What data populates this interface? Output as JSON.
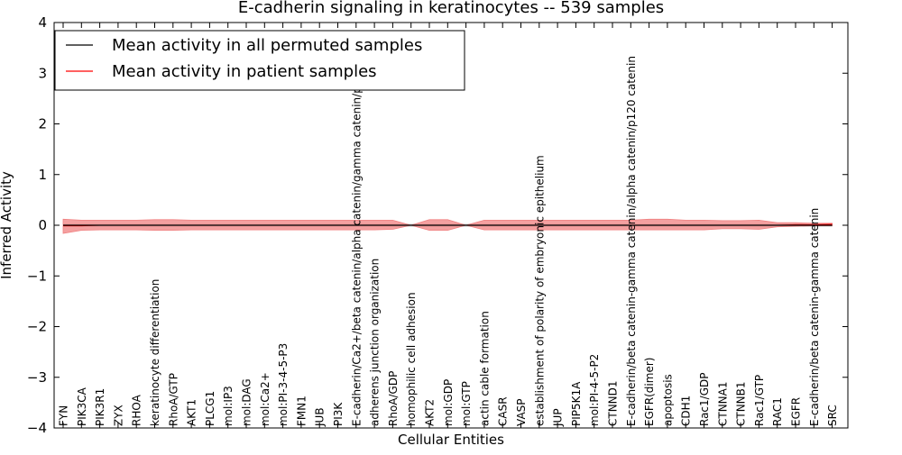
{
  "chart_data": {
    "type": "line",
    "title": "E-cadherin signaling in keratinocytes -- 539 samples",
    "xlabel": "Cellular Entities",
    "ylabel": "Inferred Activity",
    "ylim": [
      -4,
      4
    ],
    "yticks": [
      "4",
      "3",
      "2",
      "1",
      "0",
      "−1",
      "−2",
      "−3",
      "−4"
    ],
    "grid": false,
    "legend_position": "top-left",
    "categories": [
      "FYN",
      "PIK3CA",
      "PIK3R1",
      "ZYX",
      "RHOA",
      "keratinocyte differentiation",
      "RhoA/GTP",
      "AKT1",
      "PLCG1",
      "mol:IP3",
      "mol:DAG",
      "mol:Ca2+",
      "mol:PI-3-4-5-P3",
      "FMN1",
      "JUB",
      "PI3K",
      "E-cadherin/Ca2+/beta catenin/alpha catenin/gamma catenin/p120",
      "adherens junction organization",
      "RhoA/GDP",
      "homophilic cell adhesion",
      "AKT2",
      "mol:GDP",
      "mol:GTP",
      "actin cable formation",
      "CASR",
      "VASP",
      "establishment of polarity of embryonic epithelium",
      "JUP",
      "PIP5K1A",
      "mol:PI-4-5-P2",
      "CTNND1",
      "E-cadherin/beta catenin-gamma catenin/alpha catenin/p120 catenin",
      "EGFR(dimer)",
      "apoptosis",
      "CDH1",
      "Rac1/GDP",
      "CTNNA1",
      "CTNNB1",
      "Rac1/GTP",
      "RAC1",
      "EGFR",
      "E-cadherin/beta catenin-gamma catenin",
      "SRC"
    ],
    "series": [
      {
        "name": "Mean activity in all permuted samples",
        "color": "#000000",
        "values": [
          0,
          0,
          0,
          0,
          0,
          0,
          0,
          0,
          0,
          0,
          0,
          0,
          0,
          0,
          0,
          0,
          0,
          0,
          0,
          0,
          0,
          0,
          0,
          0,
          0,
          0,
          0,
          0,
          0,
          0,
          0,
          0,
          0,
          0,
          0,
          0,
          0,
          0,
          0,
          0,
          0,
          0,
          0
        ]
      },
      {
        "name": "Mean activity in patient samples",
        "color": "#ff0000",
        "values": [
          -0.01,
          -0.01,
          0,
          0,
          0,
          0,
          0,
          0,
          0,
          0,
          0,
          0,
          0,
          0,
          0,
          0,
          0,
          0,
          0,
          0,
          0,
          0,
          0,
          0,
          0,
          0,
          0,
          0,
          0,
          0,
          0,
          0,
          0,
          0,
          0,
          0,
          0,
          0,
          0,
          0,
          0.01,
          0.01,
          0.02
        ]
      }
    ],
    "band": {
      "color": "#f08080",
      "upper": [
        0.12,
        0.1,
        0.1,
        0.1,
        0.1,
        0.11,
        0.11,
        0.1,
        0.1,
        0.1,
        0.1,
        0.1,
        0.1,
        0.1,
        0.1,
        0.1,
        0.1,
        0.1,
        0.1,
        0.0,
        0.11,
        0.11,
        0.0,
        0.1,
        0.1,
        0.1,
        0.1,
        0.1,
        0.1,
        0.1,
        0.1,
        0.1,
        0.12,
        0.12,
        0.1,
        0.1,
        0.09,
        0.09,
        0.1,
        0.05,
        0.05,
        0.04,
        0.04
      ],
      "lower": [
        -0.16,
        -0.1,
        -0.09,
        -0.09,
        -0.09,
        -0.1,
        -0.1,
        -0.09,
        -0.09,
        -0.09,
        -0.09,
        -0.09,
        -0.09,
        -0.09,
        -0.09,
        -0.09,
        -0.09,
        -0.09,
        -0.08,
        0.0,
        -0.1,
        -0.1,
        0.0,
        -0.09,
        -0.09,
        -0.09,
        -0.09,
        -0.09,
        -0.09,
        -0.09,
        -0.09,
        -0.09,
        -0.09,
        -0.09,
        -0.09,
        -0.09,
        -0.07,
        -0.07,
        -0.08,
        -0.03,
        -0.02,
        -0.01,
        -0.01
      ]
    },
    "permuted_band": {
      "color": "#c8c8c8",
      "upper": [
        0.03,
        0.03,
        0.03,
        0.03,
        0.03,
        0.03,
        0.03,
        0.03,
        0.03,
        0.03,
        0.03,
        0.03,
        0.03,
        0.03,
        0.03,
        0.03,
        0.03,
        0.03,
        0.03,
        0.03,
        0.03,
        0.03,
        0.03,
        0.03,
        0.03,
        0.03,
        0.03,
        0.03,
        0.03,
        0.03,
        0.03,
        0.03,
        0.03,
        0.03,
        0.03,
        0.03,
        0.03,
        0.03,
        0.03,
        0.03,
        0.03,
        0.03,
        0.03
      ],
      "lower": [
        -0.03,
        -0.03,
        -0.03,
        -0.03,
        -0.03,
        -0.03,
        -0.03,
        -0.03,
        -0.03,
        -0.03,
        -0.03,
        -0.03,
        -0.03,
        -0.03,
        -0.03,
        -0.03,
        -0.03,
        -0.03,
        -0.03,
        -0.03,
        -0.03,
        -0.03,
        -0.03,
        -0.03,
        -0.03,
        -0.03,
        -0.03,
        -0.03,
        -0.03,
        -0.03,
        -0.03,
        -0.03,
        -0.03,
        -0.03,
        -0.03,
        -0.03,
        -0.03,
        -0.03,
        -0.03,
        -0.03,
        -0.03,
        -0.03,
        -0.03
      ]
    }
  }
}
